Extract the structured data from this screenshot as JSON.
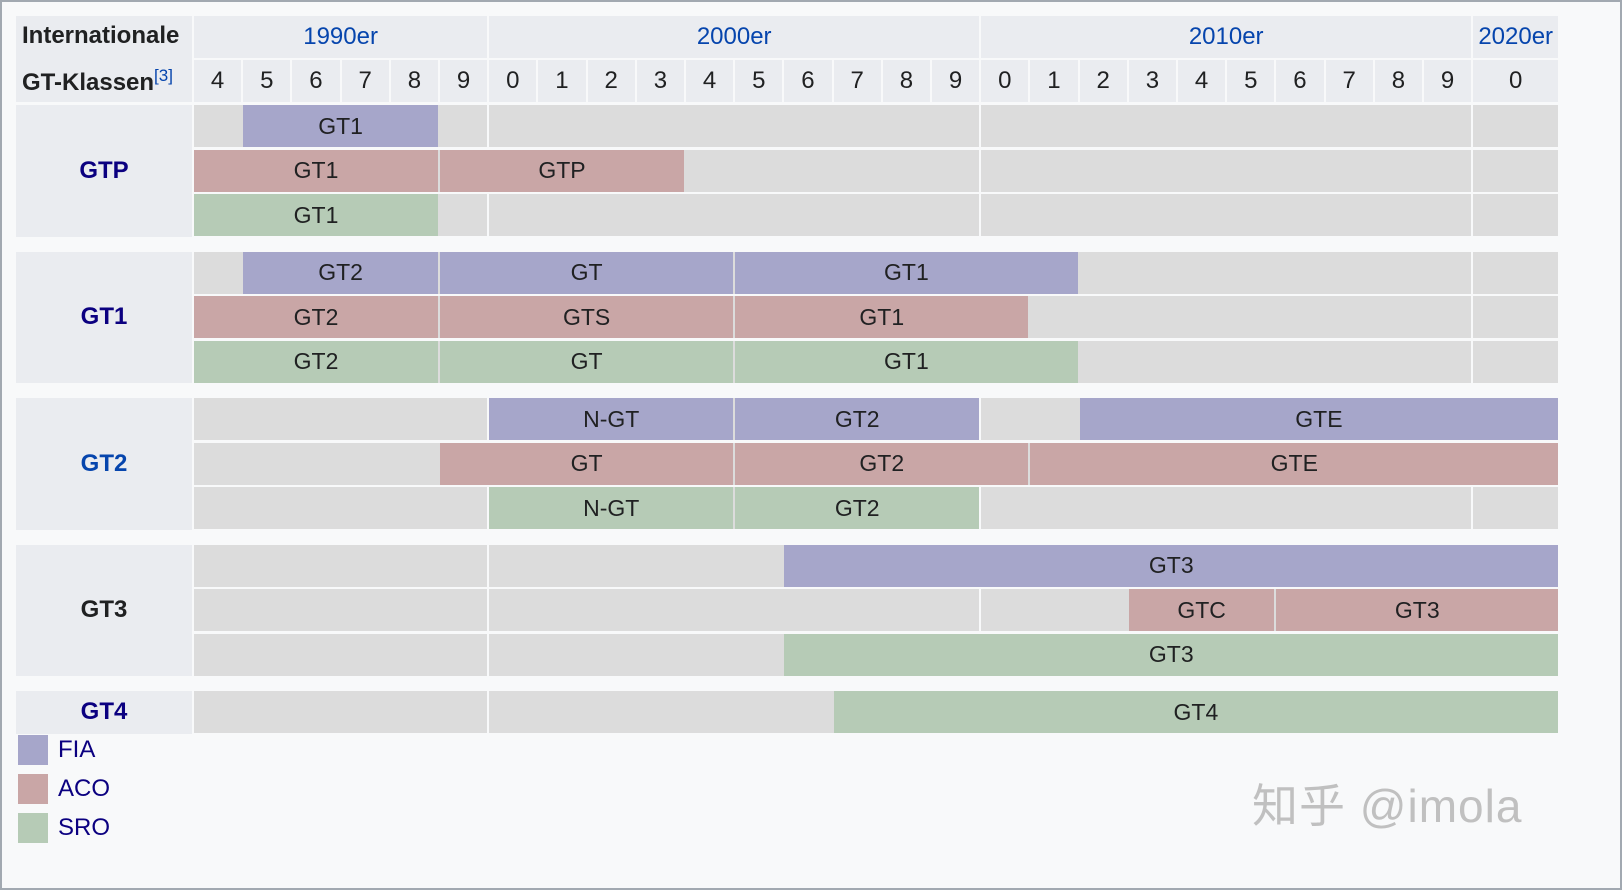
{
  "header": {
    "title_line1": "Internationale",
    "title_line2": "GT-Klassen",
    "ref": "[3]"
  },
  "decades": [
    {
      "label": "1990er",
      "from": 1994,
      "to": 1999
    },
    {
      "label": "2000er",
      "from": 2000,
      "to": 2009
    },
    {
      "label": "2010er",
      "from": 2010,
      "to": 2019
    },
    {
      "label": "2020er",
      "from": 2020,
      "to": 2020
    }
  ],
  "years": [
    "4",
    "5",
    "6",
    "7",
    "8",
    "9",
    "0",
    "1",
    "2",
    "3",
    "4",
    "5",
    "6",
    "7",
    "8",
    "9",
    "0",
    "1",
    "2",
    "3",
    "4",
    "5",
    "6",
    "7",
    "8",
    "9",
    "0"
  ],
  "colors": {
    "FIA": "#a6a6ca",
    "ACO": "#c9a6a6",
    "SRO": "#b6cbb6",
    "empty": "#dcdcdc"
  },
  "groups": [
    {
      "label": "GTP",
      "color": "#0b0080",
      "rows": [
        {
          "org": "FIA",
          "bars": [
            {
              "label": "GT1",
              "from": 1995,
              "to": 1998
            }
          ]
        },
        {
          "org": "ACO",
          "bars": [
            {
              "label": "GT1",
              "from": 1994,
              "to": 1998
            },
            {
              "label": "GTP",
              "from": 1999,
              "to": 2003
            }
          ]
        },
        {
          "org": "SRO",
          "bars": [
            {
              "label": "GT1",
              "from": 1994,
              "to": 1998
            }
          ]
        }
      ]
    },
    {
      "label": "GT1",
      "color": "#0b0080",
      "rows": [
        {
          "org": "FIA",
          "bars": [
            {
              "label": "GT2",
              "from": 1995,
              "to": 1998
            },
            {
              "label": "GT",
              "from": 1999,
              "to": 2004
            },
            {
              "label": "GT1",
              "from": 2005,
              "to": 2011
            }
          ]
        },
        {
          "org": "ACO",
          "bars": [
            {
              "label": "GT2",
              "from": 1994,
              "to": 1998
            },
            {
              "label": "GTS",
              "from": 1999,
              "to": 2004
            },
            {
              "label": "GT1",
              "from": 2005,
              "to": 2010
            }
          ]
        },
        {
          "org": "SRO",
          "bars": [
            {
              "label": "GT2",
              "from": 1994,
              "to": 1998
            },
            {
              "label": "GT",
              "from": 1999,
              "to": 2004
            },
            {
              "label": "GT1",
              "from": 2005,
              "to": 2011
            }
          ]
        }
      ]
    },
    {
      "label": "GT2",
      "color": "#0645ad",
      "rows": [
        {
          "org": "FIA",
          "bars": [
            {
              "label": "N-GT",
              "from": 2000,
              "to": 2004
            },
            {
              "label": "GT2",
              "from": 2005,
              "to": 2009
            },
            {
              "label": "GTE",
              "from": 2012,
              "to": 2020
            }
          ]
        },
        {
          "org": "ACO",
          "bars": [
            {
              "label": "GT",
              "from": 1999,
              "to": 2004
            },
            {
              "label": "GT2",
              "from": 2005,
              "to": 2010
            },
            {
              "label": "GTE",
              "from": 2011,
              "to": 2020
            }
          ]
        },
        {
          "org": "SRO",
          "bars": [
            {
              "label": "N-GT",
              "from": 2000,
              "to": 2004
            },
            {
              "label": "GT2",
              "from": 2005,
              "to": 2009
            }
          ]
        }
      ]
    },
    {
      "label": "GT3",
      "color": "#202122",
      "rows": [
        {
          "org": "FIA",
          "bars": [
            {
              "label": "GT3",
              "from": 2006,
              "to": 2020
            }
          ]
        },
        {
          "org": "ACO",
          "bars": [
            {
              "label": "GTC",
              "from": 2013,
              "to": 2015
            },
            {
              "label": "GT3",
              "from": 2016,
              "to": 2020
            }
          ]
        },
        {
          "org": "SRO",
          "bars": [
            {
              "label": "GT3",
              "from": 2006,
              "to": 2020
            }
          ]
        }
      ]
    },
    {
      "label": "GT4",
      "color": "#0b0080",
      "rows": [
        {
          "org": "SRO",
          "bars": [
            {
              "label": "GT4",
              "from": 2007,
              "to": 2020
            }
          ]
        }
      ]
    }
  ],
  "legend": [
    {
      "label": "FIA",
      "org": "FIA"
    },
    {
      "label": "ACO",
      "org": "ACO"
    },
    {
      "label": "SRO",
      "org": "SRO"
    }
  ],
  "watermark": "知乎 @imola"
}
